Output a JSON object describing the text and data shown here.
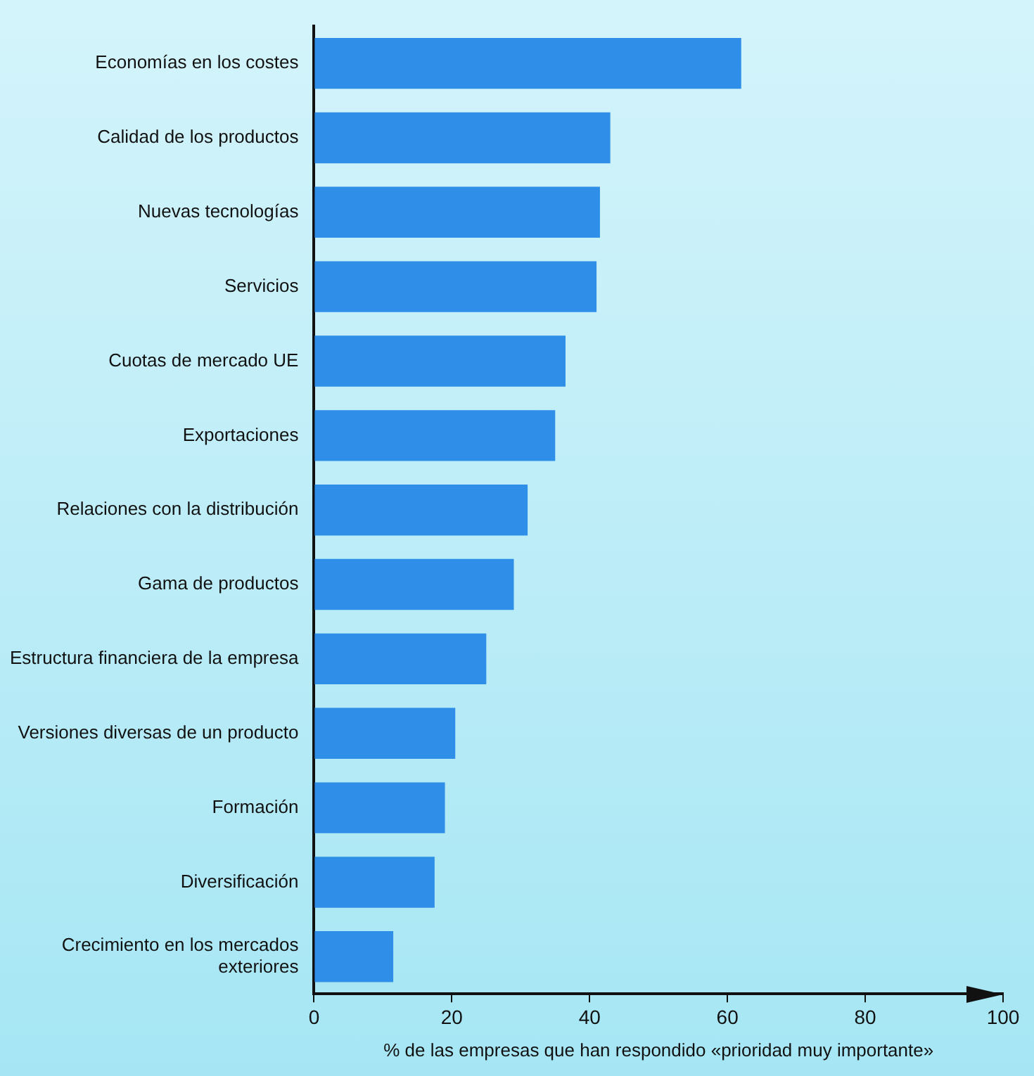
{
  "chart_data": {
    "type": "bar",
    "orientation": "horizontal",
    "xlabel": "% de las empresas que han respondido «prioridad muy importante»",
    "categories": [
      "Economías en los costes",
      "Calidad de los productos",
      "Nuevas tecnologías",
      "Servicios",
      "Cuotas de mercado UE",
      "Exportaciones",
      "Relaciones con la distribución",
      "Gama de productos",
      "Estructura financiera de la empresa",
      "Versiones diversas de un producto",
      "Formación",
      "Diversificación",
      "Crecimiento en los mercados exteriores"
    ],
    "values": [
      62,
      43,
      41.5,
      41,
      36.5,
      35,
      31,
      29,
      25,
      20.5,
      19,
      17.5,
      11.5
    ],
    "color": "#2f8fe8",
    "xlim": [
      0,
      100
    ],
    "xticks": [
      0,
      20,
      40,
      60,
      80,
      100
    ]
  }
}
